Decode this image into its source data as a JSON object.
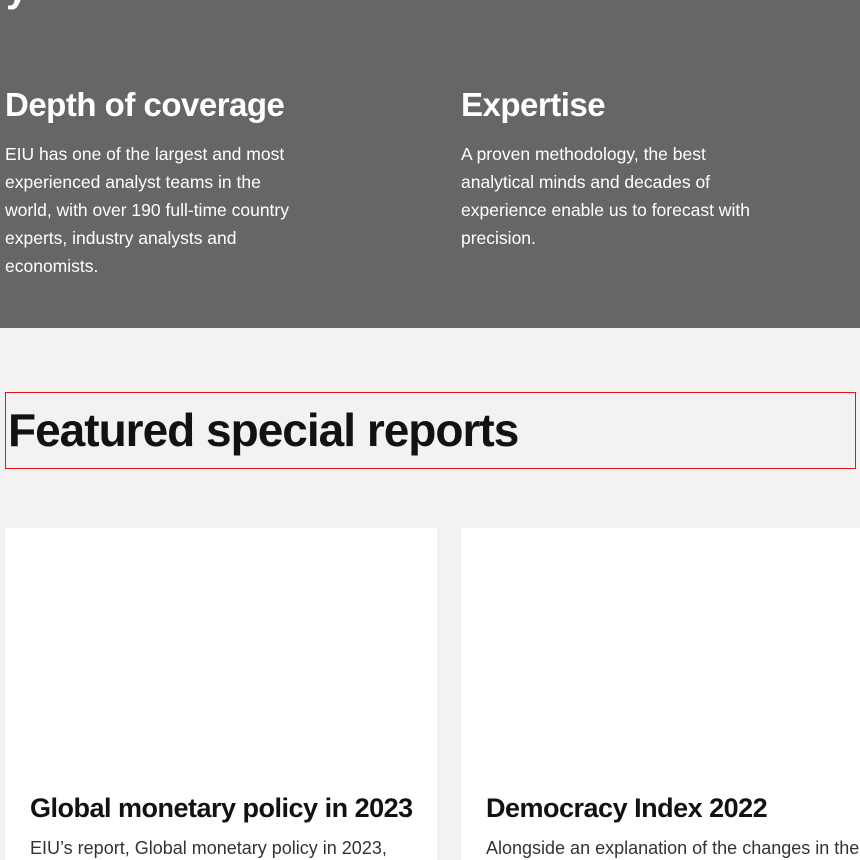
{
  "features": {
    "cutoff_heading": "y",
    "items": [
      {
        "title": "Depth of coverage",
        "body": "EIU has one of the largest and most experienced analyst teams in the world, with over 190 full-time country experts, industry analysts and economists."
      },
      {
        "title": "Expertise",
        "body": "A proven methodology, the best analytical minds and decades of experience enable us to forecast with precision."
      }
    ]
  },
  "featured": {
    "heading": "Featured special reports",
    "cards": [
      {
        "title": "Global monetary policy in 2023",
        "excerpt": "EIU’s report, Global monetary policy in 2023,"
      },
      {
        "title": "Democracy Index 2022",
        "excerpt": "Alongside an explanation of the changes in the"
      }
    ]
  },
  "colors": {
    "band_background": "#666666",
    "page_background": "#f2f2f2",
    "highlight_border": "#e0141e",
    "heading_text": "#121212"
  }
}
